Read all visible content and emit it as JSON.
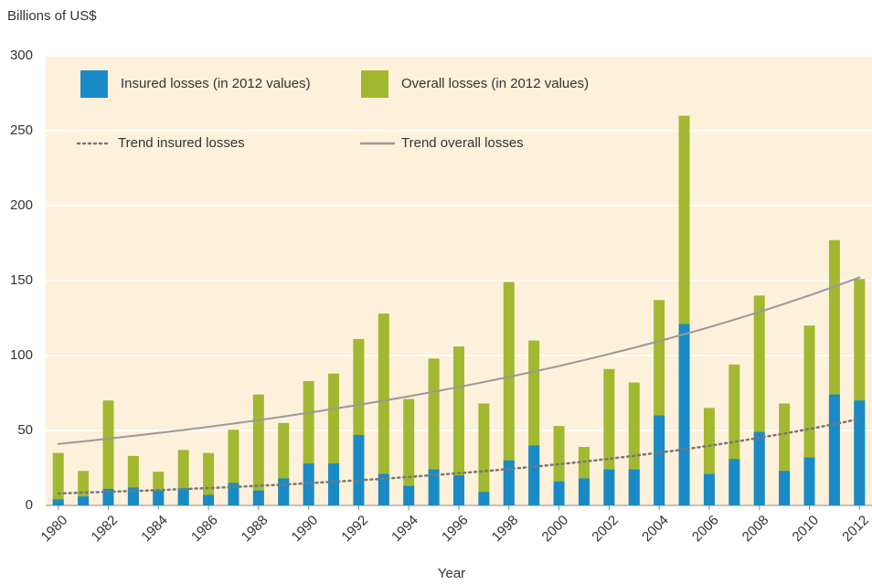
{
  "chart_data": {
    "type": "bar",
    "y_label": "Billions of US$",
    "x_label": "Year",
    "x": [
      1980,
      1981,
      1982,
      1983,
      1984,
      1985,
      1986,
      1987,
      1988,
      1989,
      1990,
      1991,
      1992,
      1993,
      1994,
      1995,
      1996,
      1997,
      1998,
      1999,
      2000,
      2001,
      2002,
      2003,
      2004,
      2005,
      2006,
      2007,
      2008,
      2009,
      2010,
      2011,
      2012
    ],
    "series": [
      {
        "name": "Insured losses (in 2012 values)",
        "type": "bar",
        "color": "#1a8ac6",
        "values": [
          4,
          6,
          11,
          12,
          10,
          11.5,
          7,
          15,
          10,
          18,
          28,
          28,
          47,
          21,
          13,
          24,
          20,
          9,
          30,
          40,
          16,
          18,
          24,
          24,
          60,
          121,
          21,
          31,
          49,
          23,
          32,
          74,
          70
        ]
      },
      {
        "name": "Overall losses (in 2012 values)",
        "type": "bar",
        "color": "#a2b830",
        "values": [
          35,
          23,
          70,
          33,
          22.5,
          37,
          35,
          50.5,
          74,
          55,
          83,
          88,
          111,
          128,
          71,
          98,
          106,
          68,
          149,
          110,
          53,
          39,
          91,
          82,
          137,
          260,
          65,
          94,
          140,
          68,
          120,
          177,
          151
        ]
      },
      {
        "name": "Trend insured losses",
        "type": "line",
        "style": "dotted",
        "color": "#777777",
        "values": [
          8,
          8.5,
          9.1,
          9.6,
          10.2,
          10.9,
          11.6,
          12.3,
          13.1,
          13.9,
          14.8,
          15.8,
          16.8,
          17.8,
          19,
          20.2,
          21.5,
          22.8,
          24.3,
          25.8,
          27.5,
          29.2,
          31.1,
          33.1,
          35.2,
          37.4,
          39.8,
          42.4,
          45.1,
          47.9,
          51,
          54.2,
          57.7
        ]
      },
      {
        "name": "Trend overall losses",
        "type": "line",
        "style": "solid",
        "color": "#999999",
        "values": [
          41,
          42.7,
          44.5,
          46.4,
          48.3,
          50.3,
          52.4,
          54.6,
          56.9,
          59.3,
          61.8,
          64.4,
          67.1,
          69.9,
          72.8,
          75.8,
          79,
          82.3,
          85.7,
          89.3,
          93,
          96.9,
          101,
          105.2,
          109.6,
          114.2,
          118.9,
          123.9,
          129.1,
          134.5,
          140.1,
          146,
          152.1
        ]
      }
    ],
    "xlim": [
      1979.5,
      2012.5
    ],
    "xticks": [
      1980,
      1982,
      1984,
      1986,
      1988,
      1990,
      1992,
      1994,
      1996,
      1998,
      2000,
      2002,
      2004,
      2006,
      2008,
      2010,
      2012
    ],
    "ylim": [
      0,
      300
    ],
    "yticks": [
      0,
      50,
      100,
      150,
      200,
      250,
      300
    ],
    "grid": true,
    "background": "#fdf1dc"
  }
}
